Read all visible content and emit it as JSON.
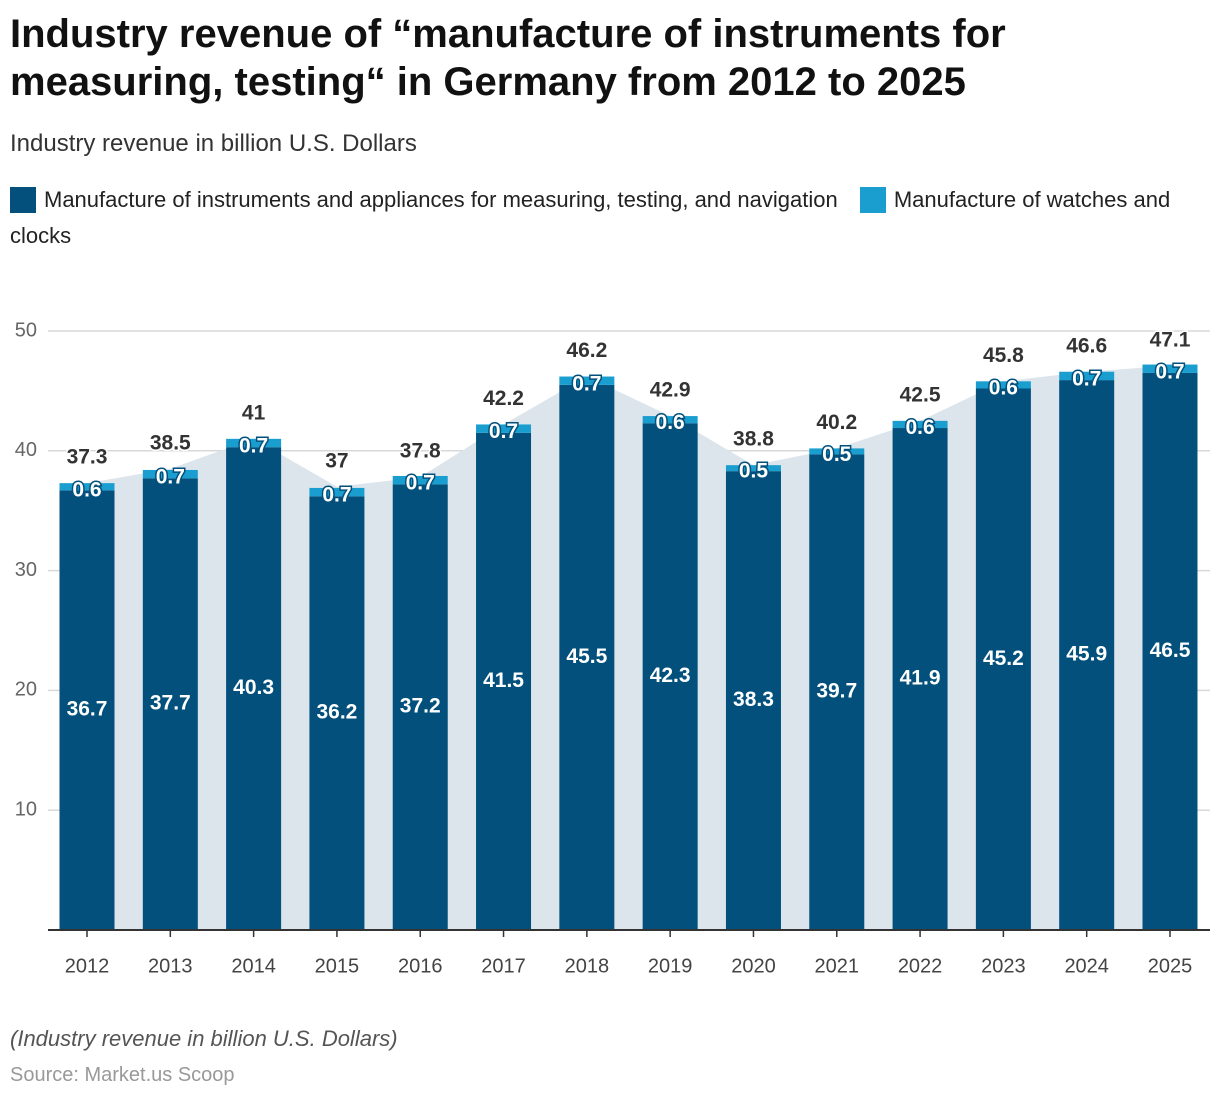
{
  "chart_data": {
    "type": "bar",
    "stacked": true,
    "title": "Industry revenue of “manufacture of instruments for measuring, testing“ in Germany from 2012 to 2025",
    "subtitle": "Industry revenue in billion U.S. Dollars",
    "note": "(Industry revenue in billion U.S. Dollars)",
    "source": "Source: Market.us Scoop",
    "categories": [
      "2012",
      "2013",
      "2014",
      "2015",
      "2016",
      "2017",
      "2018",
      "2019",
      "2020",
      "2021",
      "2022",
      "2023",
      "2024",
      "2025"
    ],
    "series": [
      {
        "name": "Manufacture of instruments and appliances for measuring, testing, and navigation",
        "color": "#02507b",
        "values": [
          36.7,
          37.7,
          40.3,
          36.2,
          37.2,
          41.5,
          45.5,
          42.3,
          38.3,
          39.7,
          41.9,
          45.2,
          45.9,
          46.5
        ]
      },
      {
        "name": "Manufacture of watches and clocks",
        "color": "#1a9ed0",
        "values": [
          0.6,
          0.7,
          0.7,
          0.7,
          0.7,
          0.7,
          0.7,
          0.6,
          0.5,
          0.5,
          0.6,
          0.6,
          0.7,
          0.7
        ]
      }
    ],
    "totals": [
      37.3,
      38.5,
      41,
      37,
      37.8,
      42.2,
      46.2,
      42.9,
      38.8,
      40.2,
      42.5,
      45.8,
      46.6,
      47.1
    ],
    "area_color": "#dce5ec",
    "ylim": [
      0,
      50
    ],
    "yticks": [
      10,
      20,
      30,
      40,
      50
    ],
    "grid": true
  }
}
